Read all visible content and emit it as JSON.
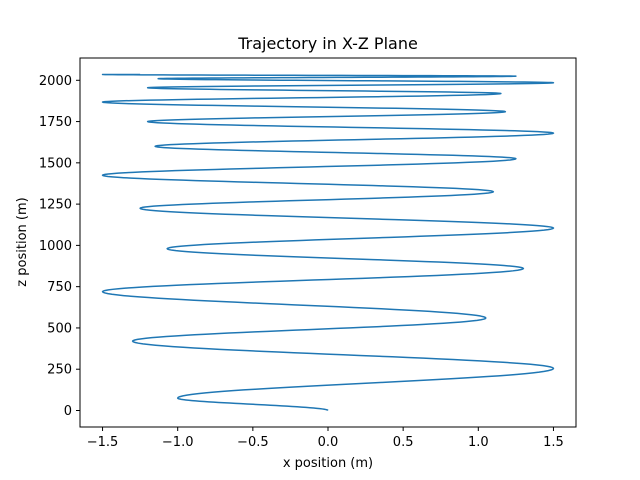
{
  "chart_data": {
    "type": "line",
    "title": "Trajectory in X-Z Plane",
    "xlabel": "x position (m)",
    "ylabel": "z position (m)",
    "xlim": [
      -1.65,
      1.65
    ],
    "ylim": [
      -100,
      2135
    ],
    "xticks": [
      -1.5,
      -1.0,
      -0.5,
      0.0,
      0.5,
      1.0,
      1.5
    ],
    "xtick_labels": [
      "−1.5",
      "−1.0",
      "−0.5",
      "0.0",
      "0.5",
      "1.0",
      "1.5"
    ],
    "yticks": [
      0,
      250,
      500,
      750,
      1000,
      1250,
      1500,
      1750,
      2000
    ],
    "ytick_labels": [
      "0",
      "250",
      "500",
      "750",
      "1000",
      "1250",
      "1500",
      "1750",
      "2000"
    ],
    "grid": false,
    "legend": false,
    "series": [
      {
        "color": "#1f77b4",
        "turning_points": [
          {
            "x": 0.0,
            "z": 0
          },
          {
            "x": -1.0,
            "z": 75
          },
          {
            "x": 1.5,
            "z": 255
          },
          {
            "x": -1.3,
            "z": 420
          },
          {
            "x": 1.05,
            "z": 560
          },
          {
            "x": -1.5,
            "z": 720
          },
          {
            "x": 1.3,
            "z": 860
          },
          {
            "x": -1.07,
            "z": 980
          },
          {
            "x": 1.5,
            "z": 1105
          },
          {
            "x": -1.25,
            "z": 1225
          },
          {
            "x": 1.1,
            "z": 1325
          },
          {
            "x": -1.5,
            "z": 1425
          },
          {
            "x": 1.25,
            "z": 1525
          },
          {
            "x": -1.15,
            "z": 1600
          },
          {
            "x": 1.5,
            "z": 1680
          },
          {
            "x": -1.2,
            "z": 1750
          },
          {
            "x": 1.18,
            "z": 1810
          },
          {
            "x": -1.5,
            "z": 1868
          },
          {
            "x": 1.15,
            "z": 1920
          },
          {
            "x": -1.2,
            "z": 1955
          },
          {
            "x": 1.5,
            "z": 1985
          },
          {
            "x": -1.13,
            "z": 2010
          },
          {
            "x": 1.25,
            "z": 2025
          },
          {
            "x": -1.5,
            "z": 2035
          },
          {
            "x": -1.25,
            "z": 2035
          }
        ]
      }
    ]
  }
}
